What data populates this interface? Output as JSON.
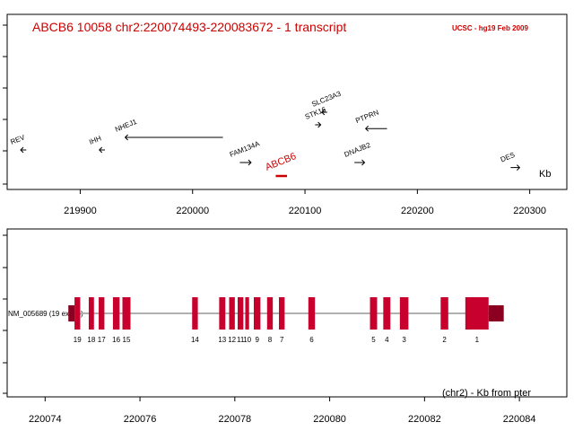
{
  "header": {
    "title": "ABCB6   10058  chr2:220074493-220083672 -   1 transcript",
    "source": "UCSC - hg19 Feb 2009"
  },
  "colors": {
    "accent": "#cc0000",
    "exon": "#c8002e",
    "utr": "#8b0020",
    "intron": "#b0b0b0"
  },
  "chart_data": [
    {
      "type": "genome-track",
      "title": "ABCB6   10058  chr2:220074493-220083672 -   1 transcript",
      "xlabel": "Kb",
      "xlim": [
        219835,
        220333
      ],
      "x_ticks": [
        219900,
        220000,
        220100,
        220200,
        220300
      ],
      "x_tick_labels": [
        "219900",
        "220000",
        "220100",
        "220200",
        "220300"
      ],
      "genes": [
        {
          "name": "REV",
          "start": 219847,
          "end": 219852,
          "strand": "-",
          "row": 2,
          "highlight": false
        },
        {
          "name": "IHH",
          "start": 219917,
          "end": 219922,
          "strand": "-",
          "row": 2,
          "highlight": false
        },
        {
          "name": "NHEJ1",
          "start": 219940,
          "end": 220027,
          "strand": "-",
          "row": 1,
          "highlight": false
        },
        {
          "name": "FAM134A",
          "start": 220042,
          "end": 220052,
          "strand": "+",
          "row": 3,
          "highlight": false
        },
        {
          "name": "ABCB6",
          "start": 220074,
          "end": 220084,
          "strand": "-",
          "row": 4,
          "highlight": true
        },
        {
          "name": "STK16",
          "start": 220109,
          "end": 220114,
          "strand": "+",
          "row": 0,
          "highlight": false
        },
        {
          "name": "SLC23A3",
          "start": 220115,
          "end": 220119,
          "strand": "-",
          "row": -1,
          "highlight": false
        },
        {
          "name": "DNAJB2",
          "start": 220144,
          "end": 220153,
          "strand": "+",
          "row": 3,
          "highlight": false
        },
        {
          "name": "PTPRN",
          "start": 220154,
          "end": 220173,
          "strand": "-",
          "row": 0.3,
          "highlight": false
        },
        {
          "name": "DES",
          "start": 220283,
          "end": 220291,
          "strand": "+",
          "row": 3.4,
          "highlight": false
        }
      ]
    },
    {
      "type": "gene-structure",
      "xlabel": "(chr2) - Kb from pter",
      "xlim": [
        220073.2,
        220085.0
      ],
      "x_ticks": [
        220074,
        220076,
        220078,
        220080,
        220082,
        220084
      ],
      "x_tick_labels": [
        "220074",
        "220076",
        "220078",
        "220080",
        "220082",
        "220084"
      ],
      "transcript": {
        "name": "NM_005689 (19 exons)",
        "start": 220074.49,
        "end": 220083.67,
        "utr_start": [
          220074.49,
          220074.62
        ],
        "utr_end": [
          220083.35,
          220083.67
        ],
        "exons": [
          {
            "label": "19",
            "start": 220074.62,
            "end": 220074.74
          },
          {
            "label": "18",
            "start": 220074.92,
            "end": 220075.03
          },
          {
            "label": "17",
            "start": 220075.13,
            "end": 220075.25
          },
          {
            "label": "16",
            "start": 220075.43,
            "end": 220075.57
          },
          {
            "label": "15",
            "start": 220075.63,
            "end": 220075.8
          },
          {
            "label": "14",
            "start": 220077.1,
            "end": 220077.22
          },
          {
            "label": "13",
            "start": 220077.67,
            "end": 220077.8
          },
          {
            "label": "12",
            "start": 220077.88,
            "end": 220078.0
          },
          {
            "label": "11",
            "start": 220078.06,
            "end": 220078.18
          },
          {
            "label": "10",
            "start": 220078.22,
            "end": 220078.3
          },
          {
            "label": "9",
            "start": 220078.4,
            "end": 220078.54
          },
          {
            "label": "8",
            "start": 220078.68,
            "end": 220078.8
          },
          {
            "label": "7",
            "start": 220078.93,
            "end": 220079.05
          },
          {
            "label": "6",
            "start": 220079.55,
            "end": 220079.69
          },
          {
            "label": "5",
            "start": 220080.85,
            "end": 220081.0
          },
          {
            "label": "4",
            "start": 220081.13,
            "end": 220081.28
          },
          {
            "label": "3",
            "start": 220081.48,
            "end": 220081.66
          },
          {
            "label": "2",
            "start": 220082.34,
            "end": 220082.5
          },
          {
            "label": "1",
            "start": 220082.86,
            "end": 220083.35
          }
        ]
      }
    }
  ]
}
